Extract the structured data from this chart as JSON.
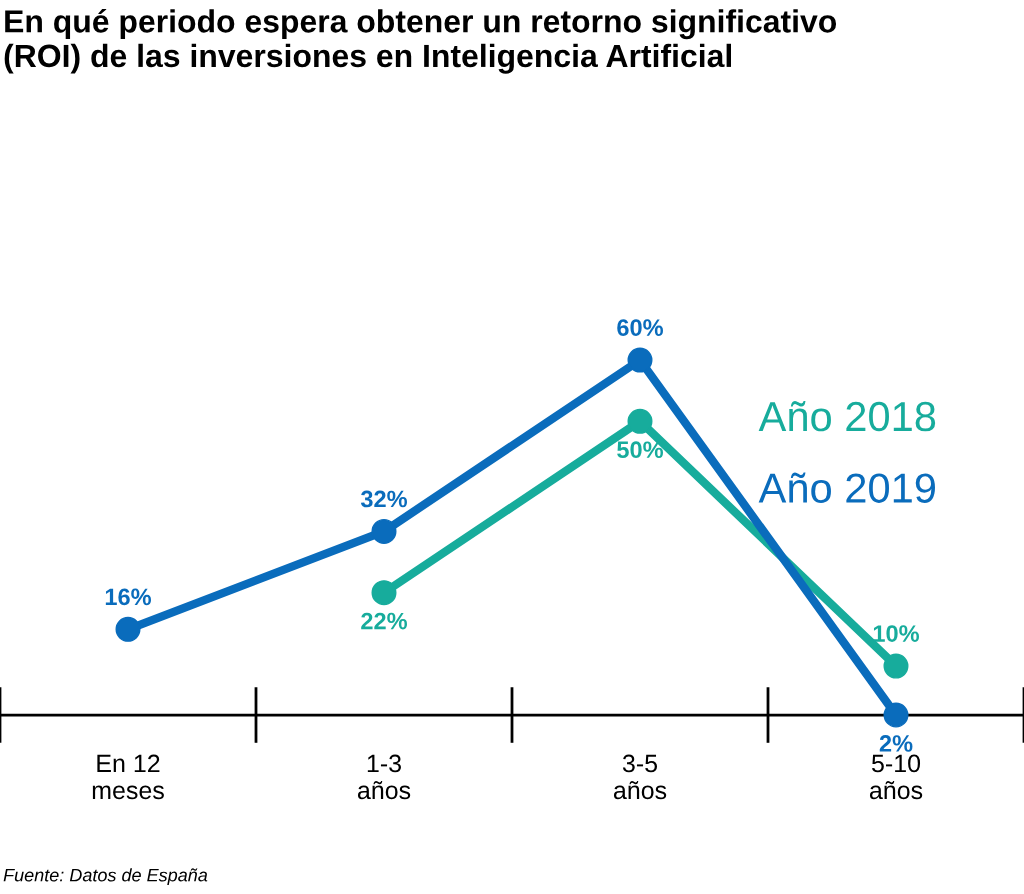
{
  "chart_data": {
    "type": "line",
    "title": "En qué periodo espera obtener un retorno significativo\n(ROI) de las inversiones en Inteligencia Artificial",
    "categories": [
      "En 12\nmeses",
      "1-3\naños",
      "3-5\naños",
      "5-10\naños"
    ],
    "series": [
      {
        "name": "Año 2018",
        "color": "#17ac9c",
        "values": [
          null,
          22,
          50,
          10
        ],
        "value_labels": [
          null,
          "22%",
          "50%",
          "10%"
        ]
      },
      {
        "name": "Año 2019",
        "color": "#0a6cbc",
        "values": [
          16,
          32,
          60,
          2
        ],
        "value_labels": [
          "16%",
          "32%",
          "60%",
          "2%"
        ]
      }
    ],
    "data_labels": true,
    "marker": "circle",
    "line_style": "solid",
    "legend": "right",
    "grid": false,
    "annotations": [
      "Fuente: Datos de España"
    ]
  }
}
